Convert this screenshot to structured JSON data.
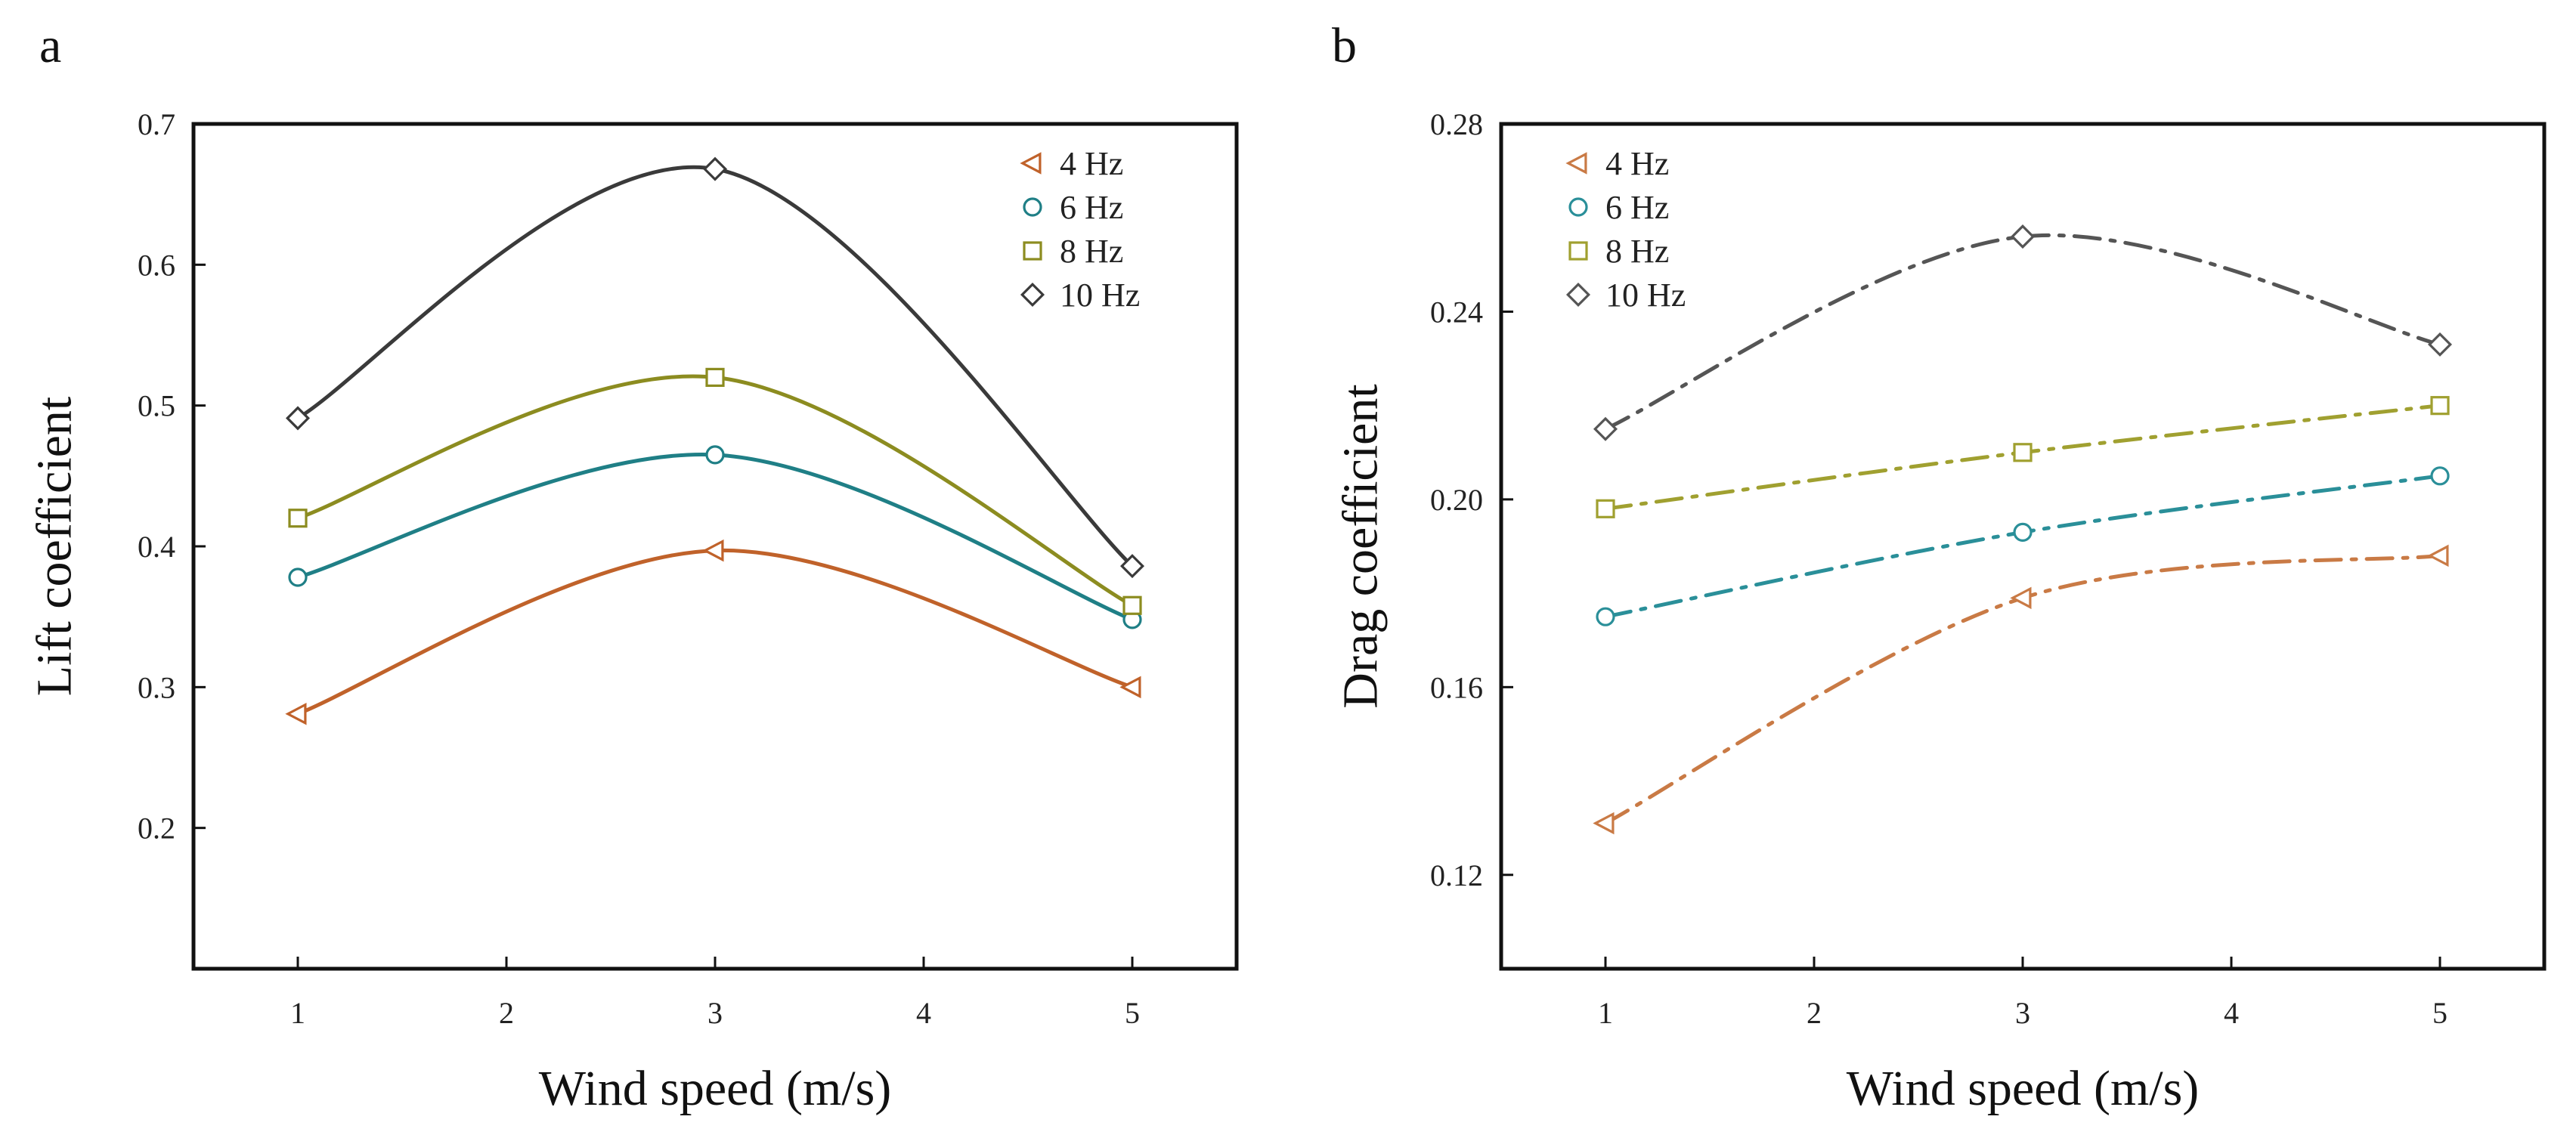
{
  "figure": {
    "panels": [
      "a",
      "b"
    ]
  },
  "chart_data": [
    {
      "type": "line",
      "panel": "a",
      "title": "",
      "xlabel": "Wind speed (m/s)",
      "ylabel": "Lift coefficient",
      "xlim": [
        0.5,
        5.5
      ],
      "ylim": [
        0.1,
        0.7
      ],
      "xticks": [
        1,
        2,
        3,
        4,
        5
      ],
      "yticks": [
        0.2,
        0.3,
        0.4,
        0.5,
        0.6,
        0.7
      ],
      "x": [
        1,
        3,
        5
      ],
      "legend_position": "top-right",
      "line_style": "solid",
      "series": [
        {
          "name": "4 Hz",
          "marker": "triangle-left",
          "color": "#c0622a",
          "values": [
            0.281,
            0.397,
            0.3
          ]
        },
        {
          "name": "6 Hz",
          "marker": "circle",
          "color": "#1f7f86",
          "values": [
            0.378,
            0.465,
            0.348
          ]
        },
        {
          "name": "8 Hz",
          "marker": "square",
          "color": "#8c8c20",
          "values": [
            0.42,
            0.52,
            0.358
          ]
        },
        {
          "name": "10 Hz",
          "marker": "diamond",
          "color": "#3a3a3a",
          "values": [
            0.491,
            0.668,
            0.386
          ]
        }
      ]
    },
    {
      "type": "line",
      "panel": "b",
      "title": "",
      "xlabel": "Wind speed (m/s)",
      "ylabel": "Drag coefficient",
      "xlim": [
        0.5,
        5.5
      ],
      "ylim": [
        0.1,
        0.28
      ],
      "xticks": [
        1,
        2,
        3,
        4,
        5
      ],
      "yticks": [
        0.12,
        0.16,
        0.2,
        0.24,
        0.28
      ],
      "ytick_labels": [
        "0.12",
        "0.16",
        "0.20",
        "0.24",
        "0.28"
      ],
      "x": [
        1,
        3,
        5
      ],
      "legend_position": "top-left",
      "line_style": "dash-dot",
      "series": [
        {
          "name": "4 Hz",
          "marker": "triangle-left",
          "color": "#c97a45",
          "values": [
            0.131,
            0.179,
            0.188
          ]
        },
        {
          "name": "6 Hz",
          "marker": "circle",
          "color": "#2a8f99",
          "values": [
            0.175,
            0.193,
            0.205
          ]
        },
        {
          "name": "8 Hz",
          "marker": "square",
          "color": "#a0a030",
          "values": [
            0.198,
            0.21,
            0.22
          ]
        },
        {
          "name": "10 Hz",
          "marker": "diamond",
          "color": "#555555",
          "values": [
            0.215,
            0.256,
            0.233
          ]
        }
      ]
    }
  ]
}
